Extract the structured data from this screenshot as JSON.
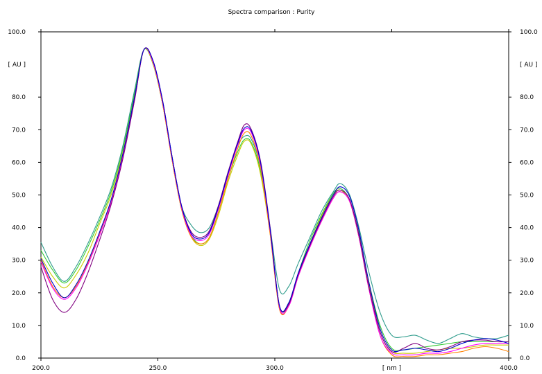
{
  "chart_data": {
    "type": "line",
    "title": "Spectra comparison : Purity",
    "xlabel": "[ nm ]",
    "ylabel": "[ AU ]",
    "xlim": [
      200,
      400
    ],
    "ylim": [
      0,
      100
    ],
    "x_ticks": [
      {
        "value": 200,
        "label": "200.0"
      },
      {
        "value": 250,
        "label": "250.0"
      },
      {
        "value": 300,
        "label": "300.0"
      },
      {
        "value": 400,
        "label": "400.0"
      }
    ],
    "y_ticks": [
      {
        "value": 0,
        "label": "0.0"
      },
      {
        "value": 10,
        "label": "10.0"
      },
      {
        "value": 20,
        "label": "20.0"
      },
      {
        "value": 30,
        "label": "30.0"
      },
      {
        "value": 40,
        "label": "40.0"
      },
      {
        "value": 50,
        "label": "50.0"
      },
      {
        "value": 60,
        "label": "60.0"
      },
      {
        "value": 70,
        "label": "70.0"
      },
      {
        "value": 80,
        "label": "80.0"
      },
      {
        "value": 100,
        "label": "100.0"
      }
    ],
    "x_unit_position": 350,
    "y_unit_position": 90,
    "grid": false,
    "x": [
      200,
      205,
      210,
      215,
      220,
      225,
      230,
      235,
      240,
      244,
      248,
      252,
      256,
      260,
      264,
      268,
      272,
      276,
      280,
      284,
      287,
      290,
      294,
      298,
      302,
      306,
      310,
      315,
      320,
      325,
      328,
      332,
      336,
      340,
      345,
      350,
      355,
      360,
      365,
      370,
      375,
      380,
      385,
      390,
      395,
      400
    ],
    "series": [
      {
        "color": "#2e9c8c",
        "values": [
          35.5,
          28,
          23.5,
          28,
          35,
          43,
          52,
          65,
          82,
          94.5,
          90,
          78,
          62,
          47,
          41,
          38.5,
          40,
          47,
          57,
          65,
          68,
          67,
          58,
          40,
          21,
          22,
          29,
          37,
          45,
          51,
          53.5,
          50,
          40,
          27,
          14,
          7,
          6.5,
          7,
          5.5,
          4.5,
          6,
          7.5,
          6.5,
          6,
          6,
          7
        ]
      },
      {
        "color": "#33cc33",
        "values": [
          33,
          27,
          23,
          27,
          34,
          42,
          51,
          64,
          81,
          94.5,
          90,
          78,
          61,
          46,
          38,
          35,
          37,
          45,
          55,
          63,
          67,
          66,
          57,
          39,
          16,
          17,
          26,
          36,
          44,
          50.5,
          52,
          48.5,
          38,
          24,
          10,
          3,
          2.5,
          3,
          3.5,
          4,
          4.5,
          5,
          5,
          5,
          5,
          5
        ]
      },
      {
        "color": "#cccc00",
        "values": [
          31,
          25,
          21.5,
          25.5,
          32,
          41,
          50,
          63,
          80,
          94.5,
          90,
          78,
          61,
          46,
          37.5,
          34.5,
          36.5,
          44,
          54,
          62,
          66.5,
          65.5,
          56,
          38,
          15,
          16.5,
          25.5,
          35,
          43.5,
          50,
          51.5,
          48,
          37,
          23,
          8,
          2,
          1.5,
          1.5,
          2,
          2.5,
          3,
          3,
          3.5,
          4,
          4,
          4
        ]
      },
      {
        "color": "#ff8000",
        "values": [
          30,
          22,
          18.5,
          22,
          29,
          38,
          48,
          62,
          79,
          94.5,
          90.5,
          78,
          61,
          46,
          37.5,
          35,
          37,
          45,
          55,
          64,
          69,
          68,
          58,
          38,
          15,
          16,
          25,
          34,
          42,
          49,
          51,
          48,
          37,
          22,
          7,
          1,
          0.5,
          0.5,
          1,
          1,
          1.5,
          2,
          3,
          3.5,
          3,
          2
        ]
      },
      {
        "color": "#ff00ff",
        "values": [
          29.5,
          21.5,
          18,
          21.5,
          28.5,
          37.5,
          47.5,
          61.5,
          79,
          94.5,
          90.5,
          78.5,
          61.5,
          46.5,
          38,
          36,
          38,
          46,
          56,
          65,
          70,
          69,
          59,
          39,
          15.5,
          16,
          25,
          34,
          42,
          49,
          51,
          48,
          37,
          22,
          7,
          1.5,
          1,
          1,
          1.5,
          1.5,
          2,
          3,
          4,
          4.5,
          4.5,
          4.5
        ]
      },
      {
        "color": "#800080",
        "values": [
          28,
          18,
          14,
          18,
          26,
          36,
          47,
          61,
          79,
          94.5,
          91,
          79,
          62,
          47,
          39,
          37,
          39,
          47,
          57,
          66,
          71.5,
          70,
          60,
          40,
          16,
          16.5,
          25.5,
          34.5,
          42.5,
          49.5,
          51.5,
          48.5,
          37.5,
          22.5,
          8,
          2,
          3,
          4.5,
          3,
          2.5,
          3.5,
          5,
          5.5,
          5.5,
          5,
          5
        ]
      },
      {
        "color": "#0000cc",
        "values": [
          30.5,
          23,
          18.5,
          22.5,
          29.5,
          38.5,
          48.5,
          62.5,
          80,
          94.5,
          91,
          79,
          62,
          47,
          38.5,
          36.5,
          38.5,
          46.5,
          56.5,
          65.5,
          70.5,
          69.5,
          59.5,
          39.5,
          16,
          17,
          26,
          35,
          43,
          50,
          52.5,
          49.5,
          39,
          24,
          9,
          2.5,
          2.5,
          3,
          2.5,
          2,
          3,
          4.5,
          5.5,
          6,
          5.5,
          4.5
        ]
      }
    ]
  }
}
